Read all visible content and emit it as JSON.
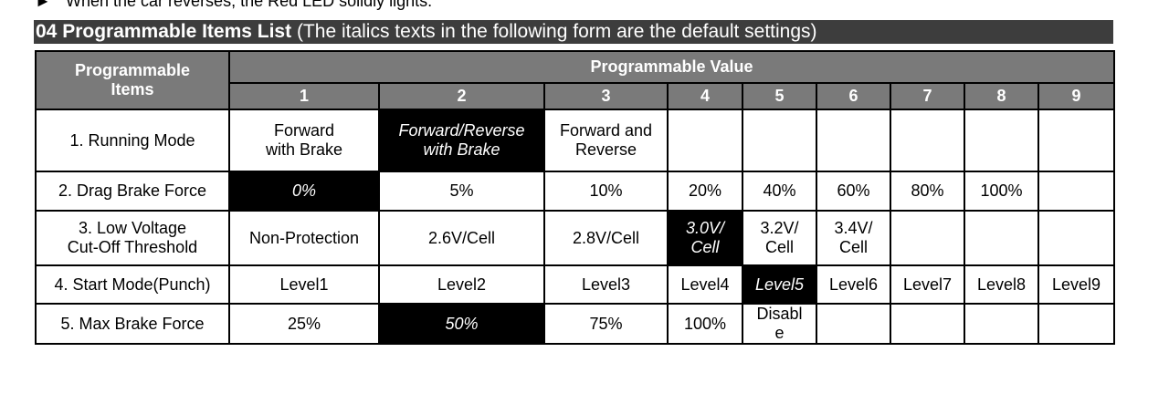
{
  "top_line": "When the car reverses, the Red LED solidly lights.",
  "top_line_bullet": "►",
  "section": {
    "title_bold": "04 Programmable Items List",
    "title_rest": " (The italics texts in the following form are the default settings)"
  },
  "table": {
    "header_items": "Programmable\nItems",
    "header_value": "Programmable Value",
    "columns": [
      "1",
      "2",
      "3",
      "4",
      "5",
      "6",
      "7",
      "8",
      "9"
    ],
    "rows": [
      {
        "item": "1. Running Mode",
        "values": [
          "Forward\nwith Brake",
          "Forward/Reverse\nwith Brake",
          "Forward and\nReverse",
          "",
          "",
          "",
          "",
          "",
          ""
        ],
        "default_index": 1
      },
      {
        "item": "2. Drag Brake Force",
        "values": [
          "0%",
          "5%",
          "10%",
          "20%",
          "40%",
          "60%",
          "80%",
          "100%",
          ""
        ],
        "default_index": 0
      },
      {
        "item": "3. Low Voltage\n    Cut-Off Threshold",
        "values": [
          "Non-Protection",
          "2.6V/Cell",
          "2.8V/Cell",
          "3.0V/\nCell",
          "3.2V/\nCell",
          "3.4V/\nCell",
          "",
          "",
          ""
        ],
        "default_index": 3
      },
      {
        "item": "4. Start Mode(Punch)",
        "values": [
          "Level1",
          "Level2",
          "Level3",
          "Level4",
          "Level5",
          "Level6",
          "Level7",
          "Level8",
          "Level9"
        ],
        "default_index": 4
      },
      {
        "item": "5. Max Brake Force",
        "values": [
          "25%",
          "50%",
          "75%",
          "100%",
          "Disabl\ne",
          "",
          "",
          "",
          ""
        ],
        "default_index": 1
      }
    ]
  }
}
